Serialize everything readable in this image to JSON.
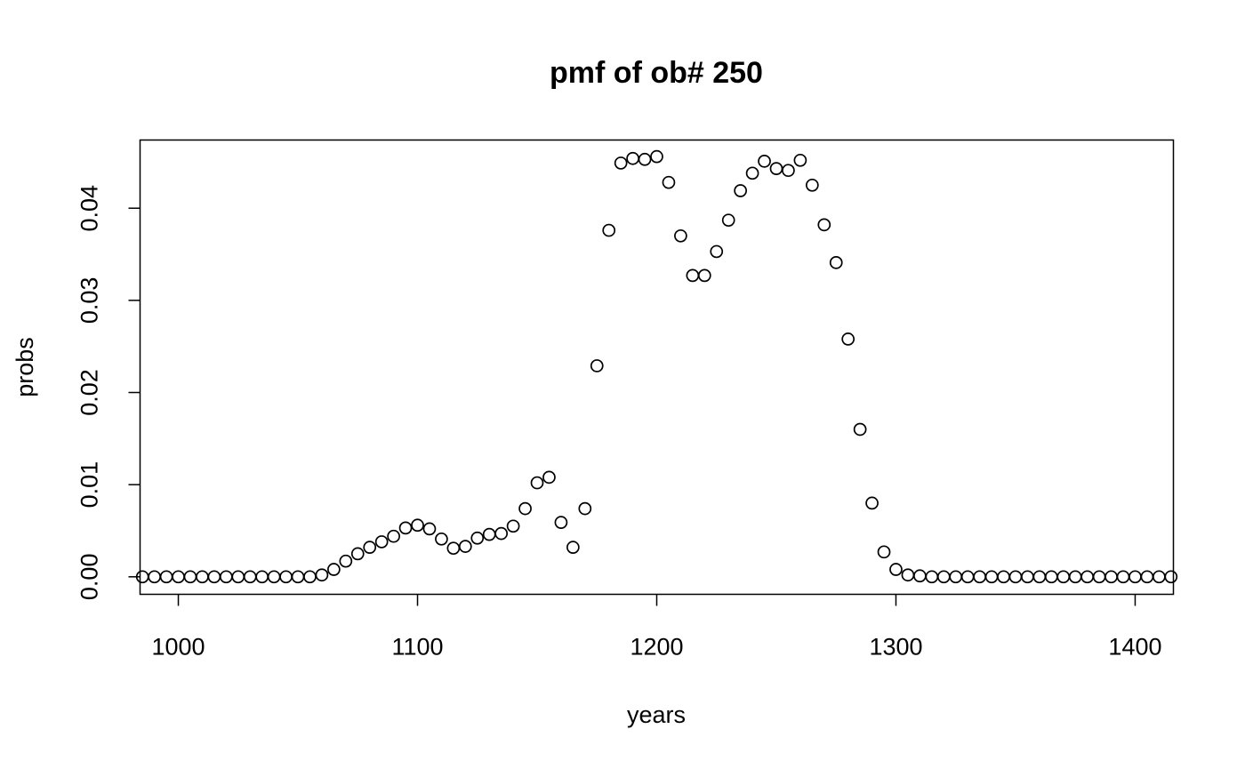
{
  "chart_data": {
    "type": "scatter",
    "title": "pmf of ob# 250",
    "xlabel": "years",
    "ylabel": "probs",
    "xlim": [
      984,
      1416
    ],
    "ylim": [
      -0.0019,
      0.0474
    ],
    "x_ticks": [
      1000,
      1100,
      1200,
      1300,
      1400
    ],
    "x_tick_labels": [
      "1000",
      "1100",
      "1200",
      "1300",
      "1400"
    ],
    "y_ticks": [
      0.0,
      0.01,
      0.02,
      0.03,
      0.04
    ],
    "y_tick_labels": [
      "0.00",
      "0.01",
      "0.02",
      "0.03",
      "0.04"
    ],
    "grid": false,
    "marker": "open-circle",
    "x": [
      985,
      990,
      995,
      1000,
      1005,
      1010,
      1015,
      1020,
      1025,
      1030,
      1035,
      1040,
      1045,
      1050,
      1055,
      1060,
      1065,
      1070,
      1075,
      1080,
      1085,
      1090,
      1095,
      1100,
      1105,
      1110,
      1115,
      1120,
      1125,
      1130,
      1135,
      1140,
      1145,
      1150,
      1155,
      1160,
      1165,
      1170,
      1175,
      1180,
      1185,
      1190,
      1195,
      1200,
      1205,
      1210,
      1215,
      1220,
      1225,
      1230,
      1235,
      1240,
      1245,
      1250,
      1255,
      1260,
      1265,
      1270,
      1275,
      1280,
      1285,
      1290,
      1295,
      1300,
      1305,
      1310,
      1315,
      1320,
      1325,
      1330,
      1335,
      1340,
      1345,
      1350,
      1355,
      1360,
      1365,
      1370,
      1375,
      1380,
      1385,
      1390,
      1395,
      1400,
      1405,
      1410,
      1415
    ],
    "y": [
      0.0,
      0.0,
      0.0,
      0.0,
      0.0,
      0.0,
      0.0,
      0.0,
      0.0,
      0.0,
      0.0,
      0.0,
      0.0,
      0.0,
      0.0,
      0.0002,
      0.0008,
      0.0017,
      0.0025,
      0.0032,
      0.0038,
      0.0044,
      0.0053,
      0.0056,
      0.0052,
      0.0041,
      0.0031,
      0.0033,
      0.0042,
      0.0046,
      0.0047,
      0.0055,
      0.0074,
      0.0102,
      0.0108,
      0.0059,
      0.0032,
      0.0074,
      0.0229,
      0.0376,
      0.0449,
      0.0454,
      0.0453,
      0.0456,
      0.0428,
      0.037,
      0.0327,
      0.0327,
      0.0353,
      0.0387,
      0.0419,
      0.0438,
      0.0451,
      0.0443,
      0.0441,
      0.0452,
      0.0425,
      0.0382,
      0.0341,
      0.0258,
      0.016,
      0.008,
      0.0027,
      0.0008,
      0.0002,
      0.0001,
      0.0,
      0.0,
      0.0,
      0.0,
      0.0,
      0.0,
      0.0,
      0.0,
      0.0,
      0.0,
      0.0,
      0.0,
      0.0,
      0.0,
      0.0,
      0.0,
      0.0,
      0.0,
      0.0,
      0.0,
      0.0
    ]
  }
}
